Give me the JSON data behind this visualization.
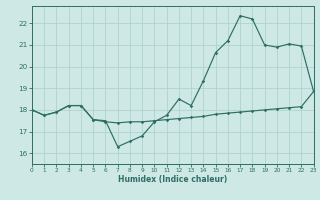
{
  "title": "",
  "xlabel": "Humidex (Indice chaleur)",
  "ylabel": "",
  "bg_color": "#cde8e5",
  "line_color": "#2e6e65",
  "grid_color": "#aacfcc",
  "x_min": 0,
  "x_max": 23,
  "y_min": 15.5,
  "y_max": 22.8,
  "yticks": [
    16,
    17,
    18,
    19,
    20,
    21,
    22
  ],
  "xticks": [
    0,
    1,
    2,
    3,
    4,
    5,
    6,
    7,
    8,
    9,
    10,
    11,
    12,
    13,
    14,
    15,
    16,
    17,
    18,
    19,
    20,
    21,
    22,
    23
  ],
  "line1_x": [
    0,
    1,
    2,
    3,
    4,
    5,
    6,
    7,
    8,
    9,
    10,
    11,
    12,
    13,
    14,
    15,
    16,
    17,
    18,
    19,
    20,
    21,
    22,
    23
  ],
  "line1_y": [
    18.0,
    17.75,
    17.9,
    18.2,
    18.2,
    17.55,
    17.45,
    17.4,
    17.45,
    17.45,
    17.5,
    17.55,
    17.6,
    17.65,
    17.7,
    17.8,
    17.85,
    17.9,
    17.95,
    18.0,
    18.05,
    18.1,
    18.15,
    18.85
  ],
  "line2_x": [
    0,
    1,
    2,
    3,
    4,
    5,
    6,
    7,
    8,
    9,
    10,
    11,
    12,
    13,
    14,
    15,
    16,
    17,
    18,
    19,
    20,
    21,
    22,
    23
  ],
  "line2_y": [
    18.0,
    17.75,
    17.9,
    18.2,
    18.2,
    17.55,
    17.5,
    16.3,
    16.55,
    16.8,
    17.45,
    17.75,
    18.5,
    18.2,
    19.35,
    20.65,
    21.2,
    22.35,
    22.2,
    21.0,
    20.9,
    21.05,
    20.95,
    18.85
  ]
}
